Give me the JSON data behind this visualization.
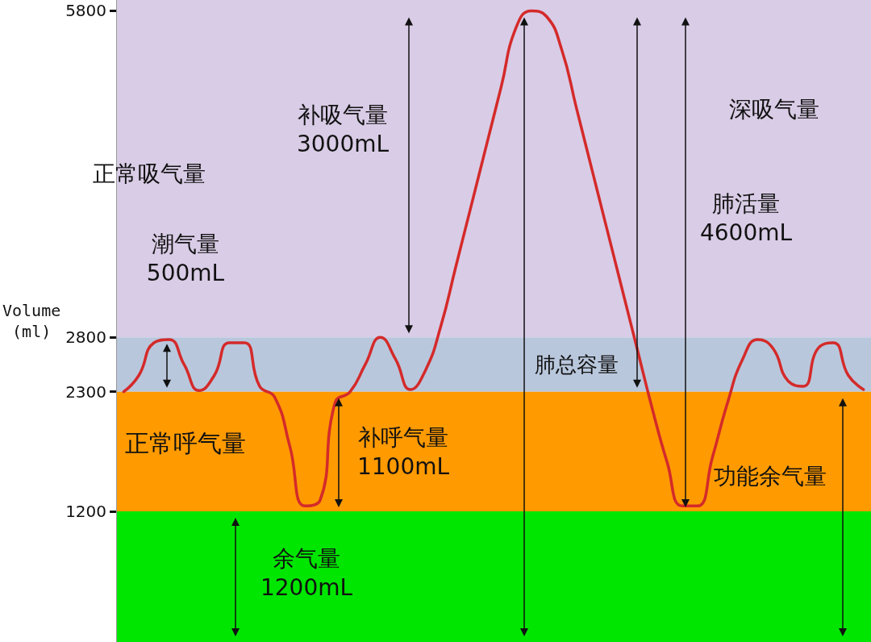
{
  "chart_data": {
    "type": "line",
    "ylabel": "Volume\n(ml)",
    "categories": [
      null,
      null,
      null,
      null,
      null,
      null,
      null,
      null,
      null,
      null,
      null,
      null,
      null,
      null,
      null,
      null,
      null,
      null,
      null,
      null,
      null,
      null,
      null,
      null,
      null,
      null,
      null,
      null,
      null,
      null,
      null,
      null,
      null,
      null,
      null,
      null,
      null,
      null,
      null,
      null,
      null,
      null,
      null,
      null,
      null,
      null,
      null,
      null,
      null,
      null
    ],
    "series": [
      {
        "color": "#d42a2a",
        "values": [
          2300,
          2450,
          2750,
          2780,
          2550,
          2310,
          2450,
          2750,
          2750,
          2350,
          2250,
          1800,
          1250,
          1300,
          2200,
          2300,
          2550,
          2800,
          2600,
          2320,
          2500,
          2900,
          3450,
          4000,
          4550,
          5100,
          5650,
          5800,
          5750,
          5450,
          4900,
          4350,
          3800,
          3250,
          2700,
          2150,
          1650,
          1250,
          1250,
          1700,
          2200,
          2600,
          2780,
          2700,
          2400,
          2350,
          2700,
          2750,
          2450,
          2320
        ]
      }
    ],
    "ylim": [
      0,
      5900
    ],
    "yticks": [
      1200,
      2300,
      2800,
      5800
    ],
    "tick_labels": "y",
    "marker": "none",
    "line_style": "solid",
    "bands": [
      {
        "axis": "y",
        "from": 2800,
        "to": 5900,
        "color": "#d9cce6",
        "label": null
      },
      {
        "axis": "y",
        "from": 2300,
        "to": 2800,
        "color": "#b9c7dc",
        "label": null
      },
      {
        "axis": "y",
        "from": 1200,
        "to": 2300,
        "color": "#ff9a00",
        "label": "正常呼气量"
      },
      {
        "axis": "y",
        "from": 0,
        "to": 1200,
        "color": "#00e600",
        "label": null
      }
    ],
    "annotations": [
      "正常吸气量",
      "潮气量\n500mL",
      "补吸气量\n3000mL",
      "深吸气量",
      "肺活量\n4600mL",
      "肺总容量",
      "补呼气量\n1100mL",
      "余气量\n1200mL",
      "功能余气量"
    ]
  }
}
